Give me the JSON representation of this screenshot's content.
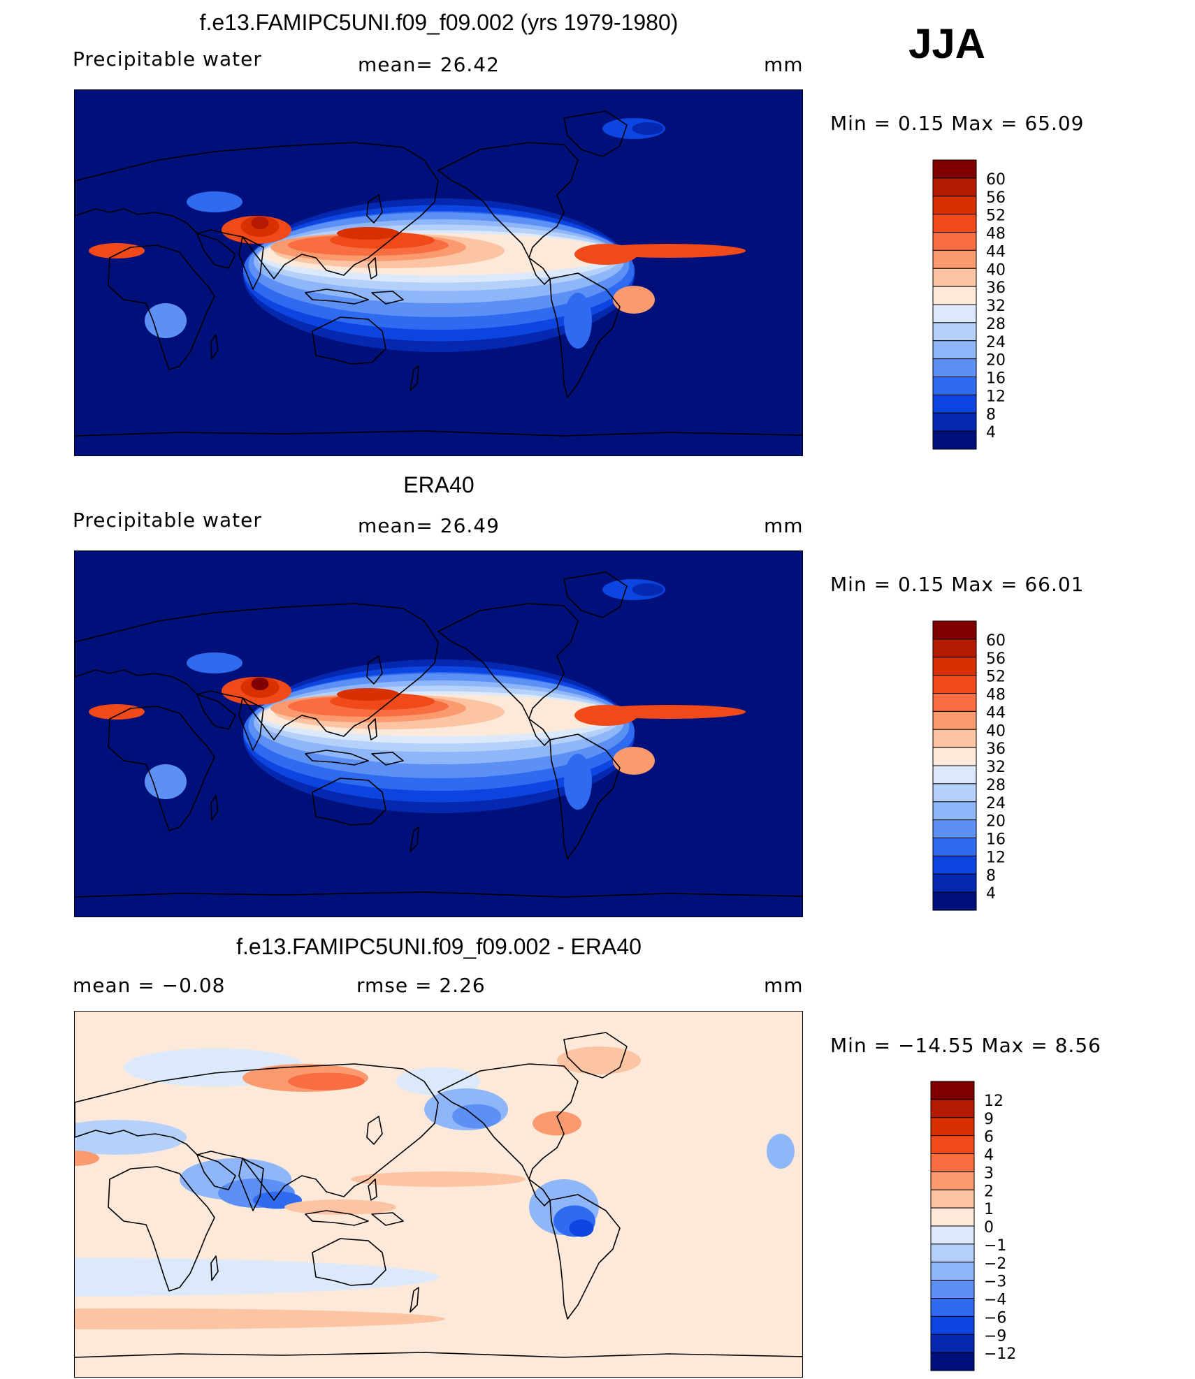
{
  "season": "JJA",
  "panels": [
    {
      "title": "f.e13.FAMIPC5UNI.f09_f09.002 (yrs 1979-1980)",
      "left_label": "Precipitable  water",
      "mid_label": "mean=   26.42",
      "units": "mm",
      "minmax": "Min  =     0.15  Max  =    65.09",
      "kind": "model"
    },
    {
      "title": "ERA40",
      "left_label": "Precipitable  water",
      "mid_label": "mean=   26.49",
      "units": "mm",
      "minmax": "Min  =     0.15  Max  =    66.01",
      "kind": "obs"
    },
    {
      "title": "f.e13.FAMIPC5UNI.f09_f09.002 - ERA40",
      "left_label": "mean  =    −0.08",
      "mid_label": "rmse  =     2.26",
      "units": "mm",
      "minmax": "Min  = −14.55  Max  =     8.56",
      "kind": "diff"
    }
  ],
  "colorbars": {
    "abs": {
      "labels": [
        "60",
        "56",
        "52",
        "48",
        "44",
        "40",
        "36",
        "32",
        "28",
        "24",
        "20",
        "16",
        "12",
        "8",
        "4"
      ],
      "colors": [
        "#7f0000",
        "#b31a00",
        "#d93000",
        "#f04a1a",
        "#f86e40",
        "#fb9a6e",
        "#fdc4a3",
        "#fde9d9",
        "#dbe9fb",
        "#b5d1fa",
        "#8fb6f8",
        "#5d90f5",
        "#2f6bf0",
        "#0d45e0",
        "#0428b0",
        "#00107a"
      ]
    },
    "diff": {
      "labels": [
        "12",
        "9",
        "6",
        "4",
        "3",
        "2",
        "1",
        "0",
        "−1",
        "−2",
        "−3",
        "−4",
        "−6",
        "−9",
        "−12"
      ],
      "colors": [
        "#7f0000",
        "#b31a00",
        "#d93000",
        "#f04a1a",
        "#f86e40",
        "#fb9a6e",
        "#fdc4a3",
        "#fde9d9",
        "#dbe9fb",
        "#b5d1fa",
        "#8fb6f8",
        "#5d90f5",
        "#2f6bf0",
        "#0d45e0",
        "#0428b0",
        "#00107a"
      ]
    }
  }
}
